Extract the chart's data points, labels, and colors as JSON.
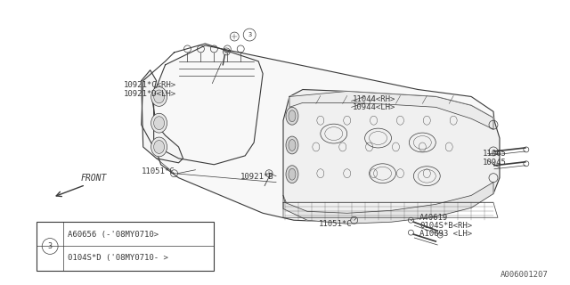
{
  "bg_color": "#ffffff",
  "line_color": "#3a3a3a",
  "text_color": "#3a3a3a",
  "watermark": "A006001207",
  "legend_circle_label": "3",
  "legend_row1": "A60656 (-'08MY0710>",
  "legend_row2": "0104S*D ('08MY0710- >",
  "fig_width": 6.4,
  "fig_height": 3.2,
  "dpi": 100
}
